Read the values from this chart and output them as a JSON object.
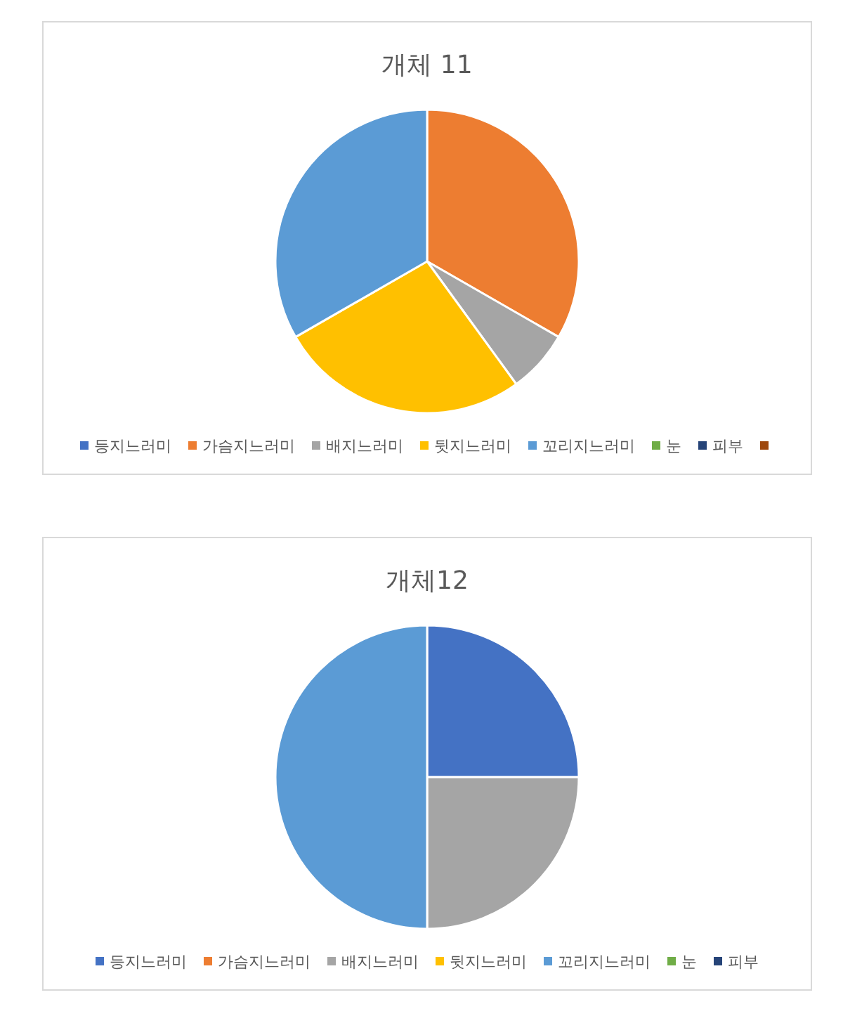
{
  "chart_data": [
    {
      "type": "pie",
      "title": "개체 11",
      "categories": [
        "등지느러미",
        "가슴지느러미",
        "배지느러미",
        "뒷지느러미",
        "꼬리지느러미",
        "눈",
        "피부",
        null
      ],
      "values": [
        0,
        33.3,
        6.7,
        26.7,
        33.3,
        0,
        0,
        0
      ],
      "colors": [
        "#4472c4",
        "#ed7d31",
        "#a5a5a5",
        "#ffc000",
        "#5b9bd5",
        "#70ad47",
        "#264478",
        "#9e480e"
      ],
      "legend": "bottom"
    },
    {
      "type": "pie",
      "title": "개체12",
      "categories": [
        "등지느러미",
        "가슴지느러미",
        "배지느러미",
        "뒷지느러미",
        "꼬리지느러미",
        "눈",
        "피부"
      ],
      "values": [
        25,
        0,
        25,
        0,
        50,
        0,
        0
      ],
      "colors": [
        "#4472c4",
        "#ed7d31",
        "#a5a5a5",
        "#ffc000",
        "#5b9bd5",
        "#70ad47",
        "#264478"
      ],
      "legend": "bottom"
    }
  ]
}
